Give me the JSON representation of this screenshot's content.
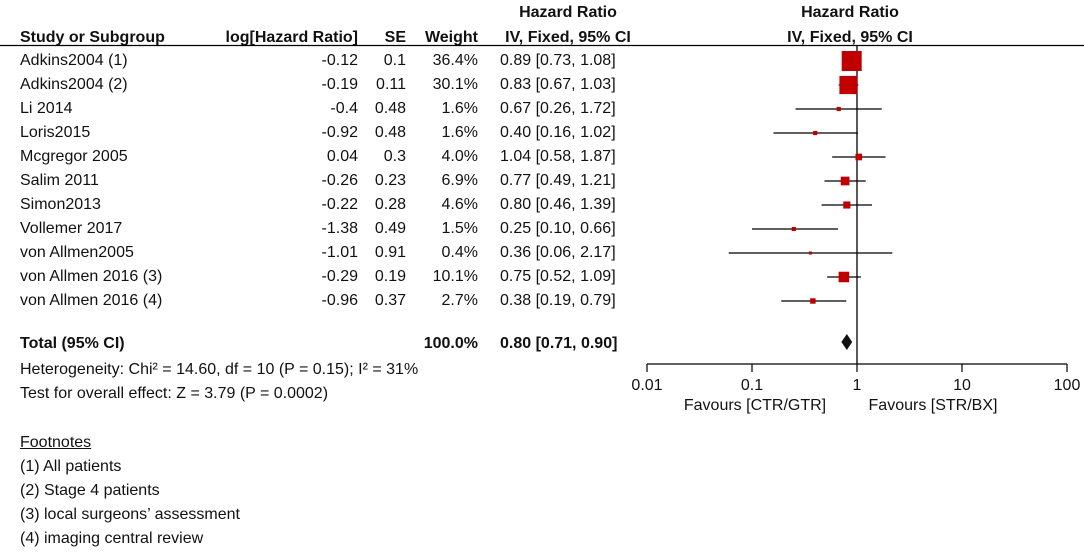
{
  "headers": {
    "study": "Study or Subgroup",
    "log_hr": "log[Hazard Ratio]",
    "se": "SE",
    "weight": "Weight",
    "hr_title": "Hazard Ratio",
    "hr_method": "IV, Fixed, 95% CI",
    "plot_title": "Hazard Ratio",
    "plot_method": "IV, Fixed, 95% CI"
  },
  "studies": [
    {
      "name": "Adkins2004 (1)",
      "log_hr": "-0.12",
      "se": "0.1",
      "weight": "36.4%",
      "ci_text": "0.89 [0.73, 1.08]"
    },
    {
      "name": "Adkins2004 (2)",
      "log_hr": "-0.19",
      "se": "0.11",
      "weight": "30.1%",
      "ci_text": "0.83 [0.67, 1.03]"
    },
    {
      "name": "Li 2014",
      "log_hr": "-0.4",
      "se": "0.48",
      "weight": "1.6%",
      "ci_text": "0.67 [0.26, 1.72]"
    },
    {
      "name": "Loris2015",
      "log_hr": "-0.92",
      "se": "0.48",
      "weight": "1.6%",
      "ci_text": "0.40 [0.16, 1.02]"
    },
    {
      "name": "Mcgregor 2005",
      "log_hr": "0.04",
      "se": "0.3",
      "weight": "4.0%",
      "ci_text": "1.04 [0.58, 1.87]"
    },
    {
      "name": "Salim 2011",
      "log_hr": "-0.26",
      "se": "0.23",
      "weight": "6.9%",
      "ci_text": "0.77 [0.49, 1.21]"
    },
    {
      "name": "Simon2013",
      "log_hr": "-0.22",
      "se": "0.28",
      "weight": "4.6%",
      "ci_text": "0.80 [0.46, 1.39]"
    },
    {
      "name": "Vollemer 2017",
      "log_hr": "-1.38",
      "se": "0.49",
      "weight": "1.5%",
      "ci_text": "0.25 [0.10, 0.66]"
    },
    {
      "name": "von Allmen2005",
      "log_hr": "-1.01",
      "se": "0.91",
      "weight": "0.4%",
      "ci_text": "0.36 [0.06, 2.17]"
    },
    {
      "name": "von Allmen 2016 (3)",
      "log_hr": "-0.29",
      "se": "0.19",
      "weight": "10.1%",
      "ci_text": "0.75 [0.52, 1.09]"
    },
    {
      "name": "von Allmen 2016 (4)",
      "log_hr": "-0.96",
      "se": "0.37",
      "weight": "2.7%",
      "ci_text": "0.38 [0.19, 0.79]"
    }
  ],
  "total": {
    "label": "Total (95% CI)",
    "weight": "100.0%",
    "ci_text": "0.80 [0.71, 0.90]"
  },
  "heterogeneity": "Heterogeneity: Chi² = 14.60, df = 10 (P = 0.15); I² = 31%",
  "overall_test": "Test for overall effect: Z = 3.79 (P = 0.0002)",
  "footnotes": {
    "title": "Footnotes",
    "items": [
      "(1) All patients",
      "(2) Stage 4 patients",
      "(3) local surgeons’ assessment",
      "(4) imaging central review"
    ]
  },
  "axis": {
    "ticks": [
      "0.01",
      "0.1",
      "1",
      "10",
      "100"
    ],
    "favours_left": "Favours [CTR/GTR]",
    "favours_right": "Favours [STR/BX]"
  },
  "colors": {
    "marker": "#c00000",
    "line": "#000000"
  },
  "chart_data": {
    "type": "forest",
    "title": "Hazard Ratio",
    "subtitle": "IV, Fixed, 95% CI",
    "scale": "log",
    "xlim": [
      0.01,
      100
    ],
    "reference_line": 1,
    "xlabel_left": "Favours [CTR/GTR]",
    "xlabel_right": "Favours [STR/BX]",
    "points": [
      {
        "study": "Adkins2004 (1)",
        "hr": 0.89,
        "lo": 0.73,
        "hi": 1.08,
        "weight": 36.4
      },
      {
        "study": "Adkins2004 (2)",
        "hr": 0.83,
        "lo": 0.67,
        "hi": 1.03,
        "weight": 30.1
      },
      {
        "study": "Li 2014",
        "hr": 0.67,
        "lo": 0.26,
        "hi": 1.72,
        "weight": 1.6
      },
      {
        "study": "Loris2015",
        "hr": 0.4,
        "lo": 0.16,
        "hi": 1.02,
        "weight": 1.6
      },
      {
        "study": "Mcgregor 2005",
        "hr": 1.04,
        "lo": 0.58,
        "hi": 1.87,
        "weight": 4.0
      },
      {
        "study": "Salim 2011",
        "hr": 0.77,
        "lo": 0.49,
        "hi": 1.21,
        "weight": 6.9
      },
      {
        "study": "Simon2013",
        "hr": 0.8,
        "lo": 0.46,
        "hi": 1.39,
        "weight": 4.6
      },
      {
        "study": "Vollemer 2017",
        "hr": 0.25,
        "lo": 0.1,
        "hi": 0.66,
        "weight": 1.5
      },
      {
        "study": "von Allmen2005",
        "hr": 0.36,
        "lo": 0.06,
        "hi": 2.17,
        "weight": 0.4
      },
      {
        "study": "von Allmen 2016 (3)",
        "hr": 0.75,
        "lo": 0.52,
        "hi": 1.09,
        "weight": 10.1
      },
      {
        "study": "von Allmen 2016 (4)",
        "hr": 0.38,
        "lo": 0.19,
        "hi": 0.79,
        "weight": 2.7
      }
    ],
    "pooled": {
      "label": "Total (95% CI)",
      "hr": 0.8,
      "lo": 0.71,
      "hi": 0.9,
      "weight": 100.0
    }
  }
}
